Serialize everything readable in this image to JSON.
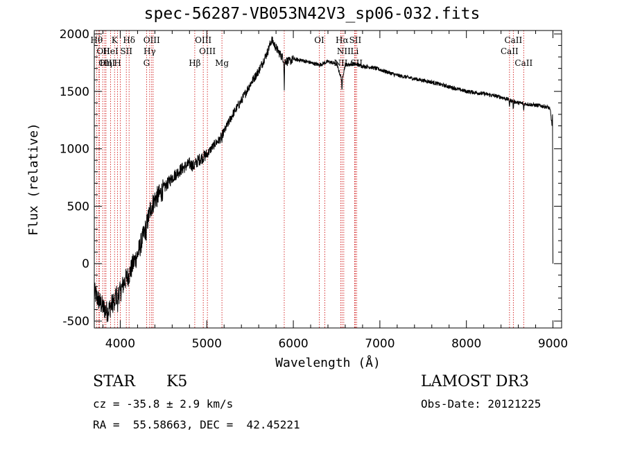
{
  "title": "spec-56287-VB053N42V3_sp06-032.fits",
  "info": {
    "object_type": "STAR",
    "subclass": "K5",
    "survey": "LAMOST DR3",
    "redshift_line": "cz = -35.8 ± 2.9 km/s",
    "obs_date": "Obs-Date: 20121225",
    "coords_line": "RA =  55.58663, DEC =  42.45221"
  },
  "colors": {
    "line": "#000000",
    "marker": "#cc0000",
    "background": "#ffffff"
  },
  "chart_data": {
    "type": "line",
    "xlabel": "Wavelength (Å)",
    "ylabel": "Flux (relative)",
    "xlim": [
      3700,
      9100
    ],
    "ylim": [
      -560,
      2030
    ],
    "x_ticks": [
      4000,
      5000,
      6000,
      7000,
      8000,
      9000
    ],
    "y_ticks": [
      -500,
      0,
      500,
      1000,
      1500,
      2000
    ],
    "series": [
      {
        "name": "flux",
        "x": [
          3700,
          3750,
          3800,
          3850,
          3900,
          3950,
          4000,
          4050,
          4100,
          4150,
          4200,
          4250,
          4300,
          4350,
          4400,
          4450,
          4500,
          4600,
          4700,
          4800,
          4850,
          4900,
          5000,
          5100,
          5150,
          5200,
          5300,
          5400,
          5500,
          5600,
          5650,
          5700,
          5750,
          5800,
          5850,
          5900,
          5950,
          6000,
          6100,
          6200,
          6300,
          6400,
          6500,
          6560,
          6600,
          6700,
          6800,
          6900,
          7000,
          7200,
          7400,
          7600,
          7800,
          8000,
          8200,
          8400,
          8600,
          8700,
          8800,
          8900,
          8950,
          8970,
          8990,
          9000
        ],
        "y": [
          -250,
          -320,
          -380,
          -420,
          -360,
          -280,
          -250,
          -150,
          -100,
          0,
          80,
          200,
          320,
          480,
          560,
          600,
          650,
          750,
          820,
          870,
          850,
          900,
          950,
          1050,
          1080,
          1150,
          1300,
          1420,
          1560,
          1680,
          1760,
          1840,
          1950,
          1880,
          1820,
          1770,
          1760,
          1780,
          1770,
          1750,
          1730,
          1760,
          1740,
          1600,
          1730,
          1740,
          1720,
          1710,
          1690,
          1640,
          1610,
          1580,
          1540,
          1500,
          1480,
          1450,
          1400,
          1390,
          1380,
          1370,
          1360,
          1330,
          1200,
          0
        ]
      }
    ],
    "lines": [
      {
        "label": "Hθ",
        "wave": 3797,
        "row": 0,
        "anchor": "end"
      },
      {
        "label": "K",
        "wave": 3934,
        "row": 0,
        "anchor": "middle"
      },
      {
        "label": "Hδ",
        "wave": 4102,
        "row": 0,
        "anchor": "middle"
      },
      {
        "label": "OIII",
        "wave": 4363,
        "row": 0,
        "anchor": "middle"
      },
      {
        "label": "OIII",
        "wave": 4959,
        "row": 0,
        "anchor": "middle"
      },
      {
        "label": "OI",
        "wave": 6300,
        "row": 0,
        "anchor": "middle"
      },
      {
        "label": "Hα",
        "wave": 6563,
        "row": 0,
        "anchor": "middle"
      },
      {
        "label": "SII",
        "wave": 6716,
        "row": 0,
        "anchor": "middle"
      },
      {
        "label": "CaII",
        "wave": 8542,
        "row": 0,
        "anchor": "middle"
      },
      {
        "label": "OII",
        "wave": 3727,
        "row": 1,
        "anchor": "start"
      },
      {
        "label": "HeI",
        "wave": 3889,
        "row": 1,
        "anchor": "middle"
      },
      {
        "label": "SII",
        "wave": 4070,
        "row": 1,
        "anchor": "middle"
      },
      {
        "label": "Hγ",
        "wave": 4340,
        "row": 1,
        "anchor": "middle"
      },
      {
        "label": "OIII",
        "wave": 5007,
        "row": 1,
        "anchor": "middle"
      },
      {
        "label": "NII",
        "wave": 6583,
        "row": 1,
        "anchor": "middle"
      },
      {
        "label": "Li",
        "wave": 6708,
        "row": 1,
        "anchor": "middle"
      },
      {
        "label": "CaII",
        "wave": 8498,
        "row": 1,
        "anchor": "middle"
      },
      {
        "label": "OIII",
        "wave": 3750,
        "row": 2,
        "anchor": "start"
      },
      {
        "label": "Hη",
        "wave": 3835,
        "row": 2,
        "anchor": "middle"
      },
      {
        "label": "H",
        "wave": 3969,
        "row": 2,
        "anchor": "middle"
      },
      {
        "label": "G",
        "wave": 4304,
        "row": 2,
        "anchor": "middle"
      },
      {
        "label": "Hβ",
        "wave": 4861,
        "row": 2,
        "anchor": "middle"
      },
      {
        "label": "Mg",
        "wave": 5175,
        "row": 2,
        "anchor": "middle"
      },
      {
        "label": "NII",
        "wave": 6548,
        "row": 2,
        "anchor": "middle"
      },
      {
        "label": "SII",
        "wave": 6731,
        "row": 2,
        "anchor": "middle"
      },
      {
        "label": "CaII",
        "wave": 8662,
        "row": 2,
        "anchor": "middle"
      }
    ],
    "extra_markers": [
      3760,
      3820,
      4000,
      4380,
      5895,
      6364
    ]
  }
}
